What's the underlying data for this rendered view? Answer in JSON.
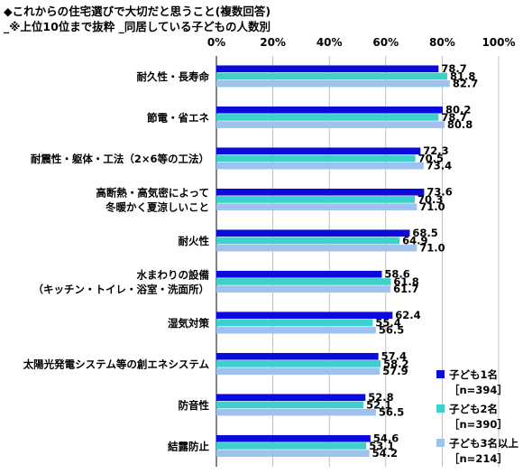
{
  "title": "◆これからの住宅選びで大切だと思うこと(複数回答)",
  "subtitle": "_※上位10位まで抜粋 _同居している子どもの人数別",
  "chart_data": {
    "type": "bar",
    "orientation": "horizontal",
    "xlim": [
      0,
      100
    ],
    "x_ticks": [
      "0%",
      "20%",
      "40%",
      "60%",
      "80%",
      "100%"
    ],
    "grid": true,
    "legend_position": "bottom-right",
    "categories": [
      [
        "耐久性・長寿命"
      ],
      [
        "節電・省エネ"
      ],
      [
        "耐震性・躯体・工法（2×6等の工法）"
      ],
      [
        "高断熱・高気密によって",
        "冬暖かく夏涼しいこと"
      ],
      [
        "耐火性"
      ],
      [
        "水まわりの設備",
        "（キッチン・トイレ・浴室・洗面所）"
      ],
      [
        "湿気対策"
      ],
      [
        "太陽光発電システム等の創エネシステム"
      ],
      [
        "防音性"
      ],
      [
        "結露防止"
      ]
    ],
    "series": [
      {
        "name": "子ども1名",
        "n": "［n=394］",
        "color": "#0a0adc",
        "values": [
          78.7,
          80.2,
          72.3,
          73.6,
          68.5,
          58.6,
          62.4,
          57.4,
          52.8,
          54.6
        ]
      },
      {
        "name": "子ども2名",
        "n": "［n=390］",
        "color": "#3dd0cc",
        "values": [
          81.8,
          78.7,
          70.5,
          70.3,
          64.9,
          61.8,
          55.4,
          58.2,
          52.1,
          53.1
        ]
      },
      {
        "name": "子ども3名以上",
        "n": "［n=214］",
        "color": "#9ec2ee",
        "values": [
          82.7,
          80.8,
          73.4,
          71.0,
          71.0,
          61.7,
          56.5,
          57.9,
          56.5,
          54.2
        ]
      }
    ]
  }
}
